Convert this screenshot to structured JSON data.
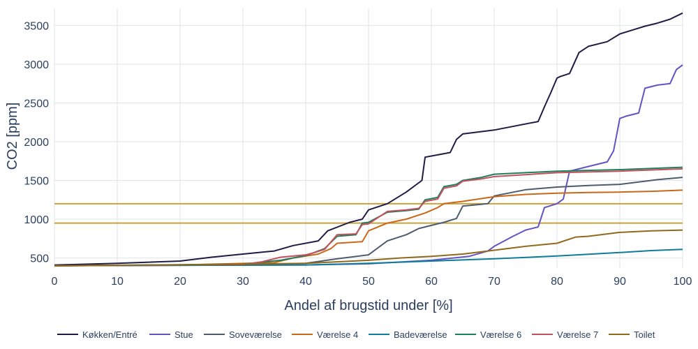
{
  "chart_data": {
    "type": "line",
    "xlabel": "Andel af brugstid under [%]",
    "ylabel": "CO2 [ppm]",
    "xlim": [
      0,
      100
    ],
    "ylim": [
      370,
      3720
    ],
    "x_ticks": [
      0,
      10,
      20,
      30,
      40,
      50,
      60,
      70,
      80,
      90,
      100
    ],
    "y_ticks": [
      500,
      1000,
      1500,
      2000,
      2500,
      3000,
      3500
    ],
    "grid": true,
    "legend_position": "bottom",
    "reference_lines": [
      {
        "y": 1200,
        "color": "#c8a23c"
      },
      {
        "y": 950,
        "color": "#c8a23c"
      }
    ],
    "series": [
      {
        "name": "Køkken/Entré",
        "color": "#1f1b45",
        "x": [
          0,
          10,
          20,
          25,
          30,
          35,
          38,
          42,
          43.5,
          47,
          49,
          50,
          53,
          56,
          58.5,
          59,
          63,
          64,
          65,
          70,
          77,
          78,
          79,
          80,
          80.5,
          82,
          83.5,
          85,
          88,
          90,
          92,
          94,
          96,
          98,
          100
        ],
        "y": [
          410,
          430,
          460,
          510,
          550,
          590,
          660,
          720,
          850,
          960,
          1000,
          1120,
          1200,
          1350,
          1500,
          1800,
          1860,
          2030,
          2100,
          2150,
          2260,
          2450,
          2630,
          2820,
          2840,
          2880,
          3150,
          3230,
          3290,
          3390,
          3440,
          3490,
          3530,
          3580,
          3660
        ]
      },
      {
        "name": "Stue",
        "color": "#6352c2",
        "x": [
          0,
          20,
          40,
          50,
          60,
          66,
          69,
          70,
          73,
          75,
          77,
          78,
          80,
          81,
          82,
          85,
          88,
          89,
          90,
          91,
          93,
          94,
          96,
          98,
          99,
          100
        ],
        "y": [
          400,
          405,
          410,
          425,
          470,
          520,
          590,
          650,
          780,
          860,
          900,
          1150,
          1200,
          1260,
          1620,
          1680,
          1740,
          1880,
          2300,
          2330,
          2370,
          2690,
          2730,
          2750,
          2930,
          2990
        ]
      },
      {
        "name": "Soveværelse",
        "color": "#4d5b6e",
        "x": [
          0,
          30,
          40,
          45,
          50,
          53,
          56,
          58,
          60,
          62,
          64,
          65,
          69,
          70,
          75,
          80,
          85,
          90,
          93,
          96,
          100
        ],
        "y": [
          400,
          410,
          430,
          490,
          540,
          720,
          800,
          880,
          920,
          960,
          1010,
          1170,
          1200,
          1300,
          1380,
          1415,
          1435,
          1450,
          1480,
          1510,
          1540
        ]
      },
      {
        "name": "Værelse 4",
        "color": "#c96818",
        "x": [
          0,
          20,
          35,
          38,
          42,
          44,
          45,
          49,
          50,
          53,
          56,
          59,
          61,
          62,
          65,
          70,
          75,
          80,
          85,
          90,
          95,
          100
        ],
        "y": [
          400,
          410,
          440,
          500,
          550,
          620,
          690,
          710,
          850,
          950,
          1000,
          1080,
          1150,
          1200,
          1230,
          1290,
          1320,
          1335,
          1345,
          1350,
          1360,
          1375
        ]
      },
      {
        "name": "Badeværelse",
        "color": "#107c9c",
        "x": [
          0,
          20,
          40,
          50,
          60,
          70,
          80,
          90,
          95,
          100
        ],
        "y": [
          400,
          405,
          410,
          430,
          460,
          490,
          525,
          570,
          595,
          610
        ]
      },
      {
        "name": "Værelse 6",
        "color": "#1d7e5e",
        "x": [
          0,
          30,
          36,
          40,
          41,
          43,
          45,
          48,
          49,
          50,
          53,
          56,
          58,
          59,
          61,
          62,
          64,
          65,
          68,
          70,
          80,
          90,
          100
        ],
        "y": [
          400,
          420,
          470,
          530,
          560,
          620,
          780,
          800,
          950,
          960,
          1090,
          1110,
          1130,
          1250,
          1280,
          1420,
          1450,
          1500,
          1540,
          1580,
          1620,
          1640,
          1670
        ]
      },
      {
        "name": "Værelse 7",
        "color": "#c4505c",
        "x": [
          0,
          30,
          33,
          36,
          40,
          41,
          43,
          45,
          48,
          49,
          50,
          53,
          56,
          58,
          59,
          61,
          62,
          64,
          65,
          68,
          70,
          80,
          90,
          100
        ],
        "y": [
          400,
          415,
          450,
          510,
          540,
          560,
          610,
          800,
          810,
          930,
          940,
          1100,
          1120,
          1140,
          1230,
          1260,
          1400,
          1430,
          1490,
          1520,
          1550,
          1600,
          1620,
          1650
        ]
      },
      {
        "name": "Toilet",
        "color": "#8f6a1c",
        "x": [
          0,
          20,
          40,
          50,
          55,
          60,
          65,
          70,
          75,
          80,
          83,
          85,
          88,
          90,
          95,
          100
        ],
        "y": [
          400,
          410,
          430,
          470,
          500,
          520,
          550,
          600,
          650,
          690,
          770,
          780,
          810,
          830,
          850,
          860
        ]
      }
    ]
  }
}
